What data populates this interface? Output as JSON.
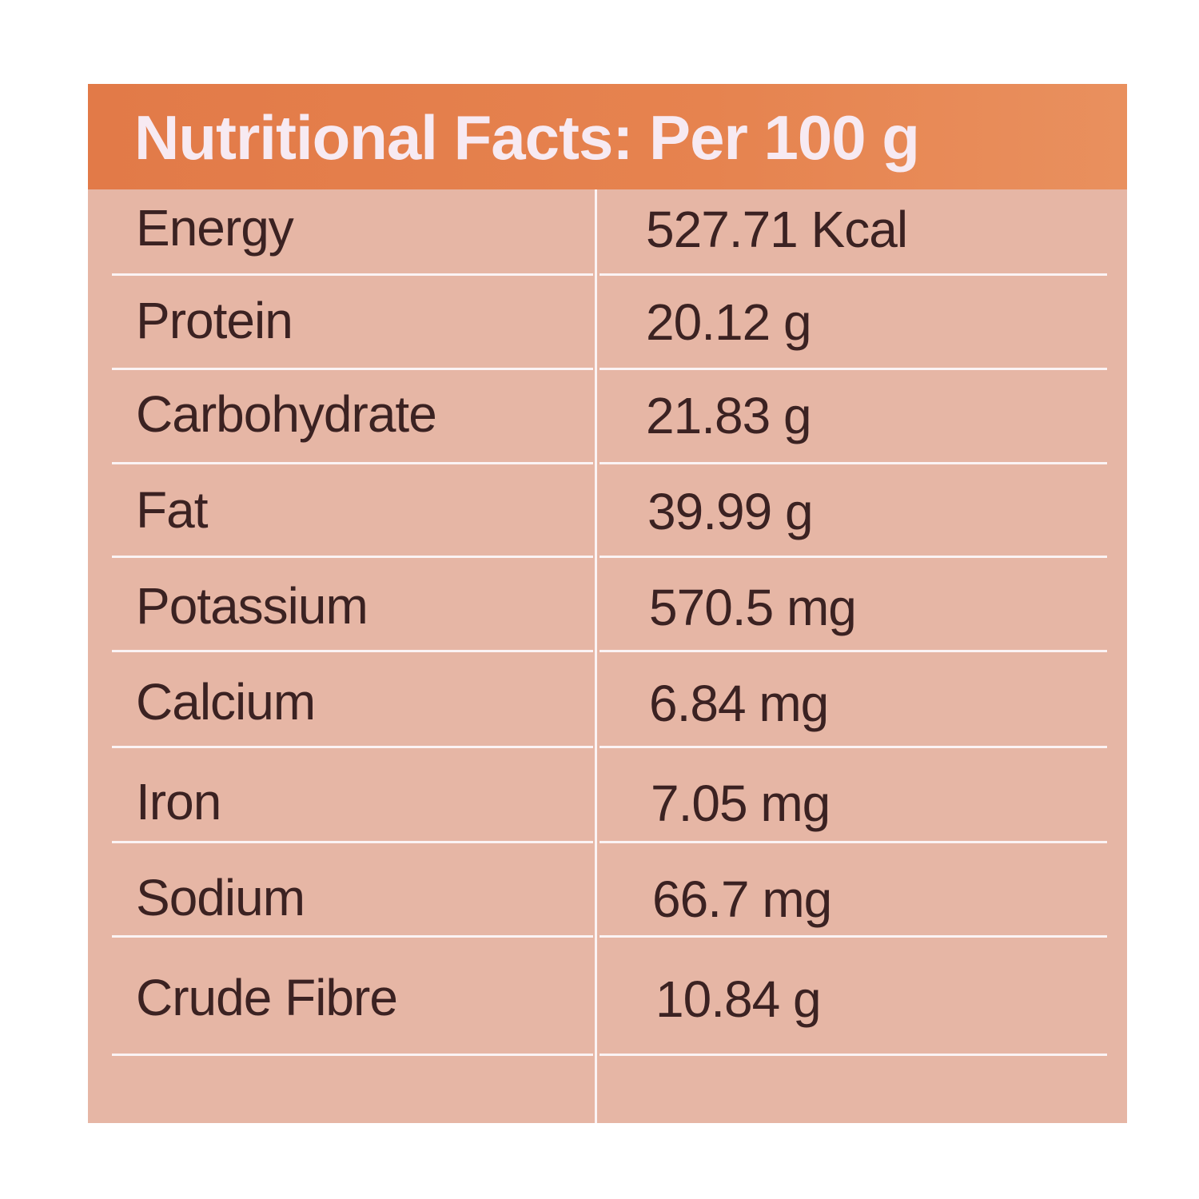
{
  "header": {
    "title": "Nutritional Facts: Per 100 g"
  },
  "table": {
    "rows": [
      [
        "Energy",
        "527.71 Kcal"
      ],
      [
        "Protein",
        "20.12 g"
      ],
      [
        "Carbohydrate",
        "21.83 g"
      ],
      [
        "Fat",
        "39.99 g"
      ],
      [
        "Potassium",
        "570.5 mg"
      ],
      [
        "Calcium",
        "6.84 mg"
      ],
      [
        "Iron",
        "7.05 mg"
      ],
      [
        "Sodium",
        "66.7 mg"
      ],
      [
        "Crude Fibre",
        "10.84 g"
      ]
    ]
  }
}
